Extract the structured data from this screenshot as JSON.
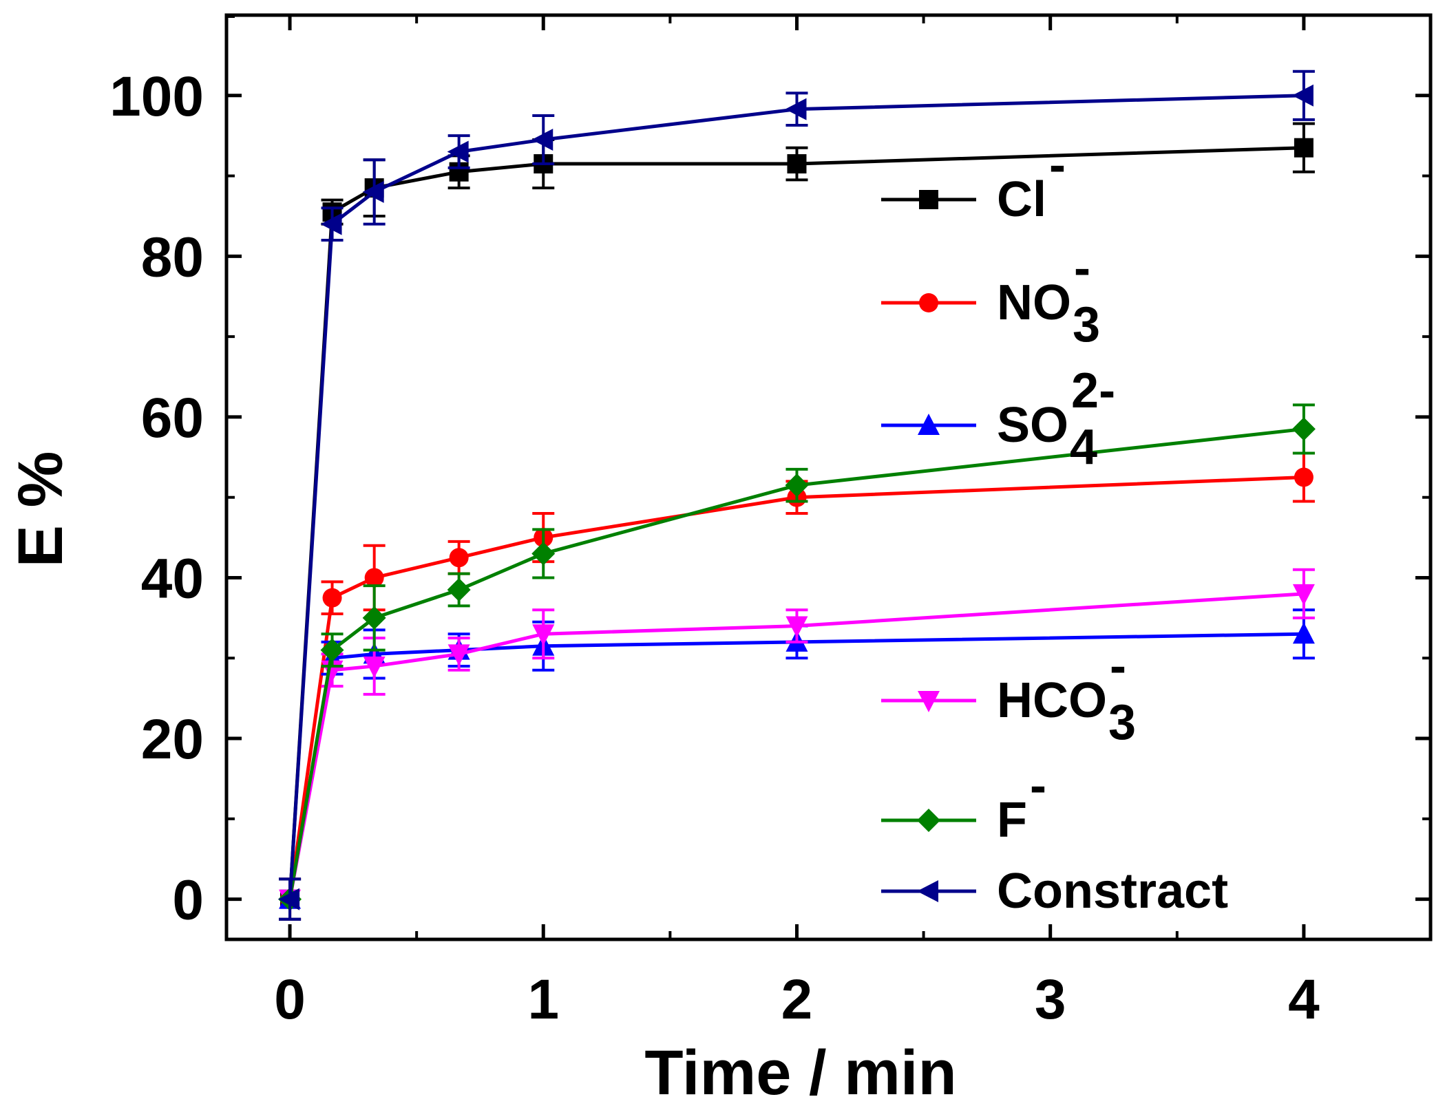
{
  "chart_data": {
    "type": "line",
    "title": "",
    "xlabel": "Time / min",
    "ylabel": "E %",
    "xlim": [
      -0.25,
      4.5
    ],
    "ylim": [
      -5,
      110
    ],
    "xticks": [
      0,
      1,
      2,
      3,
      4
    ],
    "yticks": [
      0,
      20,
      40,
      60,
      80,
      100
    ],
    "x": [
      0,
      0.167,
      0.333,
      0.667,
      1,
      2,
      4
    ],
    "legend_position": "right",
    "series": [
      {
        "name": "Cl⁻",
        "legend": {
          "base": "Cl",
          "sub": "",
          "sup": "-"
        },
        "color": "#000000",
        "marker": "square",
        "values": [
          0,
          85.5,
          88.5,
          90.5,
          91.5,
          91.5,
          93.5
        ],
        "errors": [
          2.5,
          1.5,
          3.5,
          2,
          3,
          2,
          3
        ]
      },
      {
        "name": "NO₃⁻",
        "legend": {
          "base": "NO",
          "sub": "3",
          "sup": "-"
        },
        "color": "#ff0000",
        "marker": "circle",
        "values": [
          0,
          37.5,
          40,
          42.5,
          45,
          50,
          52.5
        ],
        "errors": [
          2.5,
          2,
          4,
          2,
          3,
          2,
          3
        ]
      },
      {
        "name": "SO₄²⁻",
        "legend": {
          "base": "SO",
          "sub": "4",
          "sup": "2-"
        },
        "color": "#0000ff",
        "marker": "triangle-up",
        "values": [
          0,
          30,
          30.5,
          31,
          31.5,
          32,
          33
        ],
        "errors": [
          2.5,
          2,
          3,
          2,
          3,
          2,
          3
        ]
      },
      {
        "name": "HCO₃⁻",
        "legend": {
          "base": "HCO",
          "sub": "3",
          "sup": "-"
        },
        "color": "#ff00ff",
        "marker": "triangle-down",
        "values": [
          0,
          28.5,
          29,
          30.5,
          33,
          34,
          38
        ],
        "errors": [
          2.5,
          2,
          3.5,
          2,
          3,
          2,
          3
        ]
      },
      {
        "name": "F⁻",
        "legend": {
          "base": "F",
          "sub": "",
          "sup": "-"
        },
        "color": "#008000",
        "marker": "diamond",
        "values": [
          0,
          31,
          35,
          38.5,
          43,
          51.5,
          58.5
        ],
        "errors": [
          2.5,
          2,
          4,
          2,
          3,
          2,
          3
        ]
      },
      {
        "name": "Constract",
        "legend": {
          "base": "Constract",
          "sub": "",
          "sup": ""
        },
        "color": "#00008b",
        "marker": "triangle-left",
        "values": [
          0,
          84,
          88,
          93,
          94.5,
          98.3,
          100
        ],
        "errors": [
          2.5,
          2,
          4,
          2,
          3,
          2,
          3
        ]
      }
    ]
  }
}
